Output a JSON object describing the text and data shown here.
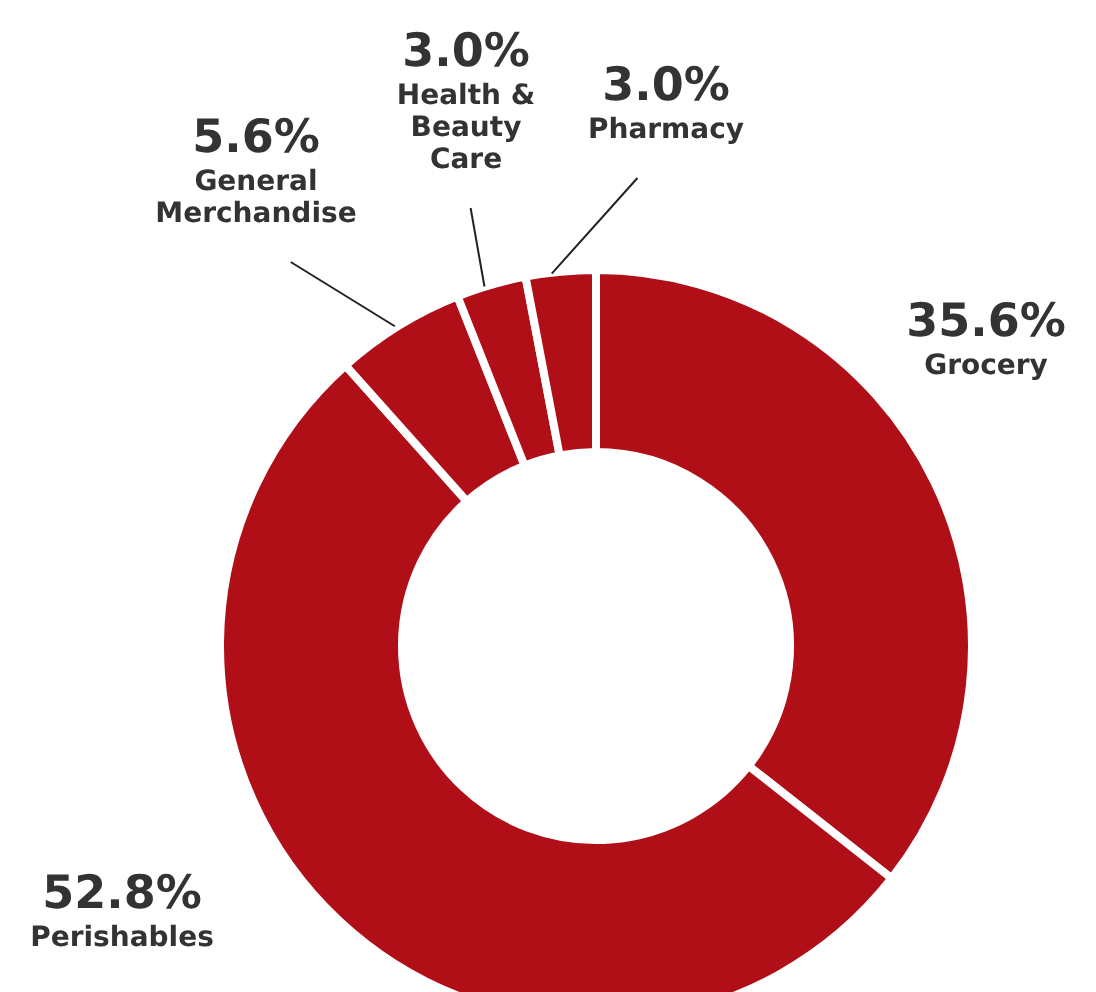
{
  "chart_data": {
    "type": "donut",
    "categories": [
      "Grocery",
      "Perishables",
      "General Merchandise",
      "Health & Beauty Care",
      "Pharmacy"
    ],
    "values": [
      35.6,
      52.8,
      5.6,
      3.0,
      3.0
    ],
    "value_labels": [
      "35.6%",
      "52.8%",
      "5.6%",
      "3.0%",
      "3.0%"
    ],
    "colors": [
      "#b00f18",
      "#b00f18",
      "#b00f18",
      "#b00f18",
      "#b00f18"
    ]
  }
}
